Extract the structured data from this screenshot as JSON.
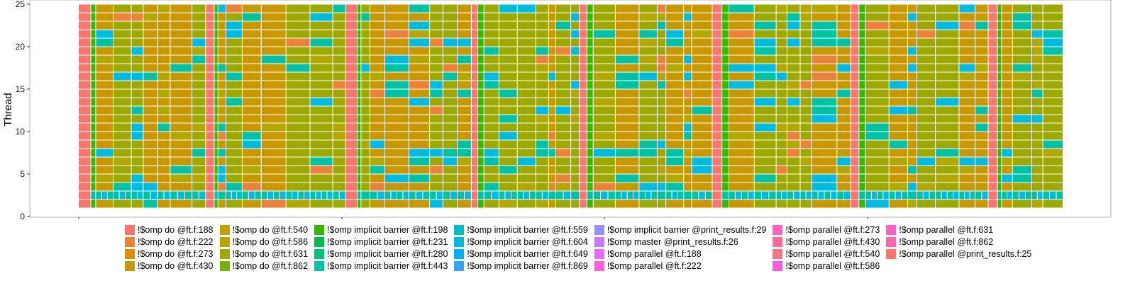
{
  "chart_data": {
    "type": "timeline",
    "ylabel": "Thread",
    "xlabel": "",
    "ylim": [
      0,
      25
    ],
    "yticks": [
      "0",
      "5",
      "10",
      "15",
      "20",
      "25"
    ],
    "threads": 24,
    "legend": [
      {
        "name": "!$omp do @ft.f:188",
        "color": "#f8766d"
      },
      {
        "name": "!$omp do @ft.f:222",
        "color": "#ec8239"
      },
      {
        "name": "!$omp do @ft.f:273",
        "color": "#db8e00"
      },
      {
        "name": "!$omp do @ft.f:430",
        "color": "#c79800"
      },
      {
        "name": "!$omp do @ft.f:540",
        "color": "#c6a000"
      },
      {
        "name": "!$omp do @ft.f:586",
        "color": "#b3a800"
      },
      {
        "name": "!$omp do @ft.f:631",
        "color": "#9da900"
      },
      {
        "name": "!$omp do @ft.f:862",
        "color": "#7cae00"
      },
      {
        "name": "!$omp implicit barrier @ft.f:198",
        "color": "#39b600"
      },
      {
        "name": "!$omp implicit barrier @ft.f:231",
        "color": "#00bb4e"
      },
      {
        "name": "!$omp implicit barrier @ft.f:280",
        "color": "#00bf7d"
      },
      {
        "name": "!$omp implicit barrier @ft.f:443",
        "color": "#00c1a3"
      },
      {
        "name": "!$omp implicit barrier @ft.f:559",
        "color": "#00bfc4"
      },
      {
        "name": "!$omp implicit barrier @ft.f:604",
        "color": "#00bae0"
      },
      {
        "name": "!$omp implicit barrier @ft.f:649",
        "color": "#00b0f6"
      },
      {
        "name": "!$omp implicit barrier @ft.f:869",
        "color": "#35a2ff"
      },
      {
        "name": "!$omp implicit barrier @print_results.f:29",
        "color": "#9590ff"
      },
      {
        "name": "!$omp master @print_results.f:26",
        "color": "#c77cff"
      },
      {
        "name": "!$omp parallel @ft.f:188",
        "color": "#e76bf3"
      },
      {
        "name": "!$omp parallel @ft.f:222",
        "color": "#fa62db"
      },
      {
        "name": "!$omp parallel @ft.f:273",
        "color": "#ff62bc"
      },
      {
        "name": "!$omp parallel @ft.f:430",
        "color": "#ff6a98"
      },
      {
        "name": "!$omp parallel @ft.f:540",
        "color": "#f3758a"
      },
      {
        "name": "!$omp parallel @ft.f:586",
        "color": "#fb61d7"
      },
      {
        "name": "!$omp parallel @ft.f:631",
        "color": "#ff61c9"
      },
      {
        "name": "!$omp parallel @ft.f:862",
        "color": "#ff65ae"
      },
      {
        "name": "!$omp parallel @print_results.f:25",
        "color": "#f8766d"
      }
    ],
    "legend_layout": {
      "rows": 4,
      "cols": 7
    },
    "dominant_colors": {
      "main": "#c79800",
      "alt": "#9da900",
      "salmon": "#f8766d",
      "barrier": "#00c1a3",
      "cyan": "#00bae0",
      "green": "#39b600"
    }
  }
}
